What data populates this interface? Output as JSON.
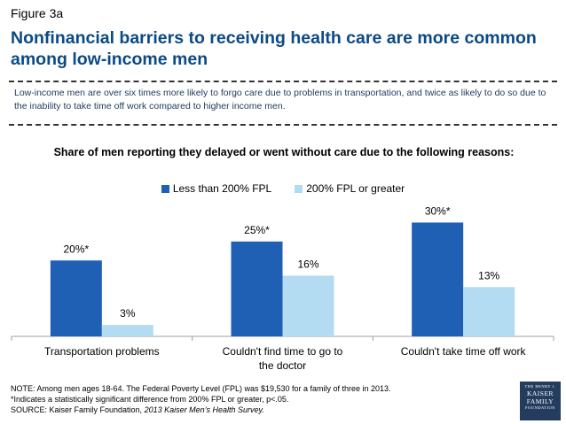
{
  "figure_label": "Figure 3a",
  "title": "Nonfinancial barriers to receiving health care are more common among low-income men",
  "subtitle": "Low-income men are over six times more likely to forgo care due to problems in transportation, and twice as likely to do so due to the inability to take time off work compared to higher income men.",
  "chart_data": {
    "type": "bar",
    "title": "Share of men reporting they delayed or went without care due to the following reasons:",
    "categories": [
      "Transportation problems",
      "Couldn't find time to go to the doctor",
      "Couldn't take time off work"
    ],
    "series": [
      {
        "name": "Less than 200% FPL",
        "values": [
          20,
          25,
          30
        ],
        "labels": [
          "20%*",
          "25%*",
          "30%*"
        ],
        "color": "#1f5fb4"
      },
      {
        "name": "200% FPL or greater",
        "values": [
          3,
          16,
          13
        ],
        "labels": [
          "3%",
          "16%",
          "13%"
        ],
        "color": "#b3dbf2"
      }
    ],
    "ylim": [
      0,
      35
    ],
    "grid": false,
    "legend_position": "top"
  },
  "footnotes": {
    "note": "NOTE: Among men ages 18-64. The Federal Poverty Level (FPL) was $19,530 for a family of three in 2013.",
    "significance": "*Indicates a statistically significant difference from 200% FPL or greater,  p<.05.",
    "source_prefix": "SOURCE: Kaiser Family Foundation, ",
    "source_title": "2013 Kaiser Men’s Health Survey."
  },
  "logo": {
    "line1": "THE HENRY J.",
    "line2": "KAISER",
    "line3": "FAMILY",
    "line4": "FOUNDATION"
  },
  "colors": {
    "title": "#0b4a85",
    "series1": "#1f5fb4",
    "series2": "#b3dbf2"
  }
}
